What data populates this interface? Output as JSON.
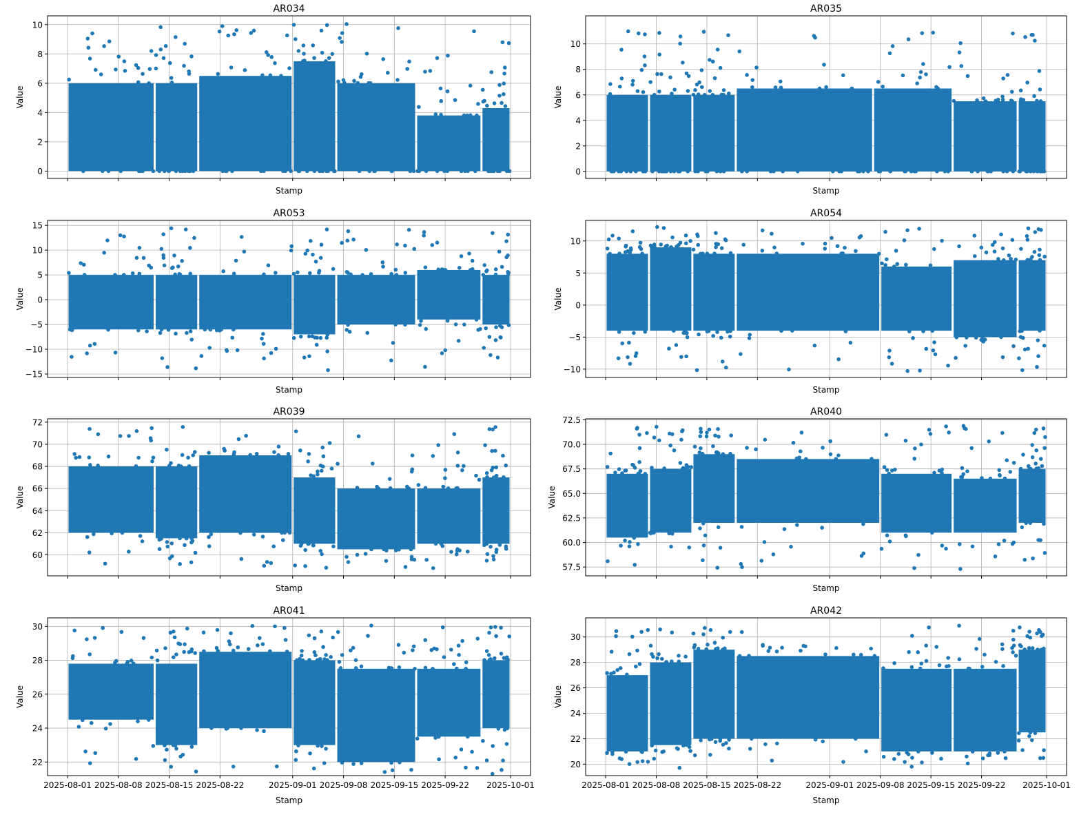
{
  "colors": {
    "series": "#1f77b4",
    "grid": "#b0b0b0",
    "axes": "#000000"
  },
  "chart_data": [
    {
      "type": "scatter",
      "title": "AR034",
      "xlabel": "Stamp",
      "ylabel": "Value",
      "grid": true,
      "xlim": [
        "2025-07-29",
        "2025-10-04"
      ],
      "ylim": [
        -0.5,
        10.6
      ],
      "yticks": [
        0,
        2,
        4,
        6,
        8,
        10
      ],
      "ytick_labels": [
        "0",
        "2",
        "4",
        "6",
        "8",
        "10"
      ],
      "range": [
        0,
        10.1
      ],
      "segments": [
        [
          "2025-08-01",
          "2025-08-13",
          0,
          6
        ],
        [
          "2025-08-13",
          "2025-08-19",
          0,
          6
        ],
        [
          "2025-08-19",
          "2025-09-01",
          0,
          6.5
        ],
        [
          "2025-09-01",
          "2025-09-07",
          0,
          7.5
        ],
        [
          "2025-09-07",
          "2025-09-18",
          0,
          6
        ],
        [
          "2025-09-18",
          "2025-09-27",
          0,
          3.8
        ],
        [
          "2025-09-27",
          "2025-10-01",
          0,
          4.3
        ]
      ]
    },
    {
      "type": "scatter",
      "title": "AR035",
      "xlabel": "Stamp",
      "ylabel": "Value",
      "grid": true,
      "xlim": [
        "2025-07-29",
        "2025-10-04"
      ],
      "ylim": [
        -0.55,
        12.2
      ],
      "yticks": [
        0,
        2,
        4,
        6,
        8,
        10
      ],
      "ytick_labels": [
        "0",
        "2",
        "4",
        "6",
        "8",
        "10"
      ],
      "range": [
        0,
        11.2
      ],
      "segments": [
        [
          "2025-08-01",
          "2025-08-07",
          0,
          6
        ],
        [
          "2025-08-07",
          "2025-08-13",
          0,
          6
        ],
        [
          "2025-08-13",
          "2025-08-19",
          0,
          6
        ],
        [
          "2025-08-19",
          "2025-09-07",
          0,
          6.5
        ],
        [
          "2025-09-07",
          "2025-09-18",
          0,
          6.5
        ],
        [
          "2025-09-18",
          "2025-09-27",
          0,
          5.5
        ],
        [
          "2025-09-27",
          "2025-10-01",
          0,
          5.5
        ]
      ]
    },
    {
      "type": "scatter",
      "title": "AR053",
      "xlabel": "Stamp",
      "ylabel": "Value",
      "grid": true,
      "xlim": [
        "2025-07-29",
        "2025-10-04"
      ],
      "ylim": [
        -15.7,
        16.0
      ],
      "yticks": [
        -15,
        -10,
        -5,
        0,
        5,
        10,
        15
      ],
      "ytick_labels": [
        "−15",
        "−10",
        "−5",
        "0",
        "5",
        "10",
        "15"
      ],
      "range": [
        -14.3,
        14.5
      ],
      "segments": [
        [
          "2025-08-01",
          "2025-08-13",
          -6,
          5
        ],
        [
          "2025-08-13",
          "2025-08-19",
          -6,
          5
        ],
        [
          "2025-08-19",
          "2025-09-01",
          -6,
          5
        ],
        [
          "2025-09-01",
          "2025-09-07",
          -7,
          5
        ],
        [
          "2025-09-07",
          "2025-09-18",
          -5,
          5
        ],
        [
          "2025-09-18",
          "2025-09-27",
          -4,
          6
        ],
        [
          "2025-09-27",
          "2025-10-01",
          -5,
          5
        ]
      ]
    },
    {
      "type": "scatter",
      "title": "AR054",
      "xlabel": "Stamp",
      "ylabel": "Value",
      "grid": true,
      "xlim": [
        "2025-07-29",
        "2025-10-04"
      ],
      "ylim": [
        -11.3,
        13.2
      ],
      "yticks": [
        -10,
        -5,
        0,
        5,
        10
      ],
      "ytick_labels": [
        "−10",
        "−5",
        "0",
        "5",
        "10"
      ],
      "range": [
        -10.3,
        12.2
      ],
      "segments": [
        [
          "2025-08-01",
          "2025-08-07",
          -4,
          8
        ],
        [
          "2025-08-07",
          "2025-08-13",
          -4,
          9
        ],
        [
          "2025-08-13",
          "2025-08-19",
          -4,
          8
        ],
        [
          "2025-08-19",
          "2025-09-08",
          -4,
          8
        ],
        [
          "2025-09-08",
          "2025-09-18",
          -4,
          6
        ],
        [
          "2025-09-18",
          "2025-09-27",
          -5,
          7
        ],
        [
          "2025-09-27",
          "2025-10-01",
          -4,
          7
        ]
      ]
    },
    {
      "type": "scatter",
      "title": "AR039",
      "xlabel": "Stamp",
      "ylabel": "Value",
      "grid": true,
      "xlim": [
        "2025-07-29",
        "2025-10-04"
      ],
      "ylim": [
        58.1,
        72.3
      ],
      "yticks": [
        60,
        62,
        64,
        66,
        68,
        70,
        72
      ],
      "ytick_labels": [
        "60",
        "62",
        "64",
        "66",
        "68",
        "70",
        "72"
      ],
      "range": [
        58.8,
        71.6
      ],
      "segments": [
        [
          "2025-08-01",
          "2025-08-13",
          62,
          68
        ],
        [
          "2025-08-13",
          "2025-08-19",
          61.5,
          68
        ],
        [
          "2025-08-19",
          "2025-09-01",
          62,
          69
        ],
        [
          "2025-09-01",
          "2025-09-07",
          61,
          67
        ],
        [
          "2025-09-07",
          "2025-09-18",
          60.5,
          66
        ],
        [
          "2025-09-18",
          "2025-09-27",
          61,
          66
        ],
        [
          "2025-09-27",
          "2025-10-01",
          61,
          67
        ]
      ]
    },
    {
      "type": "scatter",
      "title": "AR040",
      "xlabel": "Stamp",
      "ylabel": "Value",
      "grid": true,
      "xlim": [
        "2025-07-29",
        "2025-10-04"
      ],
      "ylim": [
        56.6,
        72.6
      ],
      "yticks": [
        57.5,
        60,
        62.5,
        65,
        67.5,
        70,
        72.5
      ],
      "ytick_labels": [
        "57.5",
        "60.0",
        "62.5",
        "65.0",
        "67.5",
        "70.0",
        "72.5"
      ],
      "range": [
        57.1,
        71.9
      ],
      "segments": [
        [
          "2025-08-01",
          "2025-08-07",
          60.5,
          67
        ],
        [
          "2025-08-07",
          "2025-08-13",
          61,
          67.5
        ],
        [
          "2025-08-13",
          "2025-08-19",
          62,
          69
        ],
        [
          "2025-08-19",
          "2025-09-08",
          62,
          68.5
        ],
        [
          "2025-09-08",
          "2025-09-18",
          61,
          67
        ],
        [
          "2025-09-18",
          "2025-09-27",
          61,
          66.5
        ],
        [
          "2025-09-27",
          "2025-10-01",
          62,
          67.5
        ]
      ]
    },
    {
      "type": "scatter",
      "title": "AR041",
      "xlabel": "Stamp",
      "ylabel": "Value",
      "grid": true,
      "xlim": [
        "2025-07-29",
        "2025-10-04"
      ],
      "ylim": [
        21.2,
        30.5
      ],
      "yticks": [
        22,
        24,
        26,
        28,
        30
      ],
      "ytick_labels": [
        "22",
        "24",
        "26",
        "28",
        "30"
      ],
      "xticks": [
        "2025-08-01",
        "2025-08-08",
        "2025-08-15",
        "2025-08-22",
        "2025-09-01",
        "2025-09-08",
        "2025-09-15",
        "2025-09-22",
        "2025-10-01"
      ],
      "range": [
        21.3,
        30.1
      ],
      "segments": [
        [
          "2025-08-01",
          "2025-08-13",
          24.5,
          27.8
        ],
        [
          "2025-08-13",
          "2025-08-19",
          23,
          27.8
        ],
        [
          "2025-08-19",
          "2025-09-01",
          24,
          28.5
        ],
        [
          "2025-09-01",
          "2025-09-07",
          23,
          28
        ],
        [
          "2025-09-07",
          "2025-09-18",
          22,
          27.5
        ],
        [
          "2025-09-18",
          "2025-09-27",
          23.5,
          27.5
        ],
        [
          "2025-09-27",
          "2025-10-01",
          24,
          28
        ]
      ]
    },
    {
      "type": "scatter",
      "title": "AR042",
      "xlabel": "Stamp",
      "ylabel": "Value",
      "grid": true,
      "xlim": [
        "2025-07-29",
        "2025-10-04"
      ],
      "ylim": [
        19.1,
        31.5
      ],
      "yticks": [
        20,
        22,
        24,
        26,
        28,
        30
      ],
      "ytick_labels": [
        "20",
        "22",
        "24",
        "26",
        "28",
        "30"
      ],
      "xticks": [
        "2025-08-01",
        "2025-08-08",
        "2025-08-15",
        "2025-08-22",
        "2025-09-01",
        "2025-09-08",
        "2025-09-15",
        "2025-09-22",
        "2025-10-01"
      ],
      "range": [
        19.7,
        30.9
      ],
      "segments": [
        [
          "2025-08-01",
          "2025-08-07",
          21,
          27
        ],
        [
          "2025-08-07",
          "2025-08-13",
          21.5,
          28
        ],
        [
          "2025-08-13",
          "2025-08-19",
          22,
          29
        ],
        [
          "2025-08-19",
          "2025-09-08",
          22,
          28.5
        ],
        [
          "2025-09-08",
          "2025-09-18",
          21,
          27.5
        ],
        [
          "2025-09-18",
          "2025-09-27",
          21,
          27.5
        ],
        [
          "2025-09-27",
          "2025-10-01",
          22.5,
          29
        ]
      ]
    }
  ]
}
